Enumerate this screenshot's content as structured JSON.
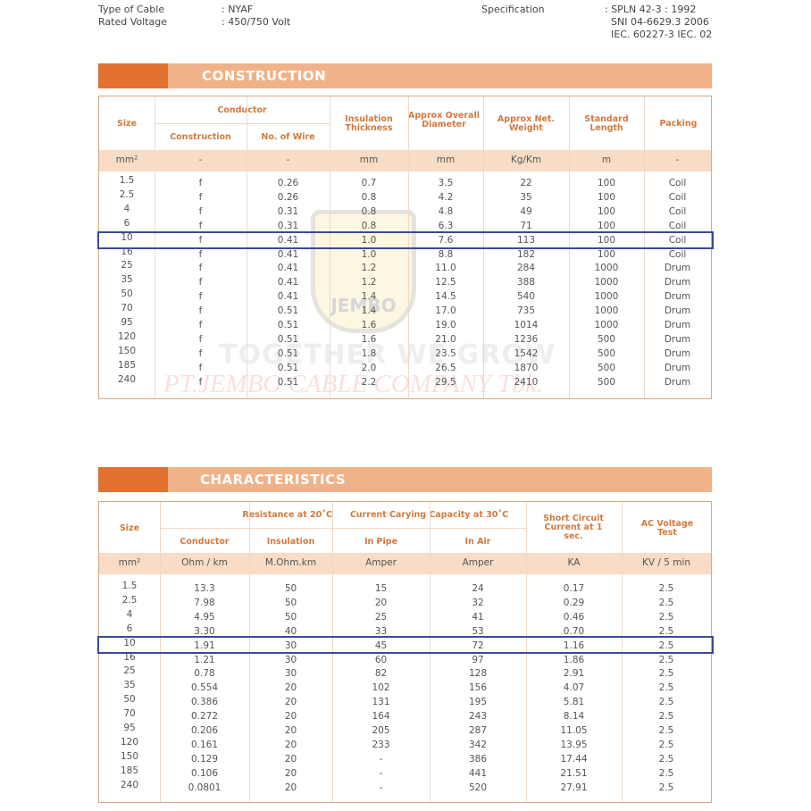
{
  "specs": {
    "type_label": "Type of Cable",
    "type_value": ": NYAF",
    "voltage_label": "Rated Voltage",
    "voltage_value": ": 450/750 Volt",
    "spec_label": "Specification",
    "spec_values": [
      ": SPLN 42-3 : 1992",
      "SNI 04-6629.3 2006",
      "IEC. 60227-3 IEC. 02"
    ]
  },
  "watermark": {
    "logo": "JEMBO",
    "slogan": "TOGETHER WE GROW",
    "company": "PT.JEMBO CABLE COMPANY Tbk."
  },
  "colors": {
    "accent_dark": "#e2702e",
    "accent_light": "#f0b289",
    "header_text": "#d07a3f",
    "highlight": "#3a4a96"
  },
  "construction": {
    "title": "CONSTRUCTION",
    "headers": {
      "size": "Size",
      "conductor": "Conductor",
      "construction": "Construction",
      "no_wire": "No. of Wire",
      "insulation": "Insulation Thickness",
      "diameter": "Approx Overall Diameter",
      "weight": "Approx Net. Weight",
      "length": "Standard Length",
      "packing": "Packing"
    },
    "units": [
      "mm²",
      "-",
      "-",
      "mm",
      "mm",
      "Kg/Km",
      "m",
      "-"
    ],
    "highlighted_size": "10",
    "rows": [
      [
        "1.5",
        "f",
        "0.26",
        "0.7",
        "3.5",
        "22",
        "100",
        "Coil"
      ],
      [
        "2.5",
        "f",
        "0.26",
        "0.8",
        "4.2",
        "35",
        "100",
        "Coil"
      ],
      [
        "4",
        "f",
        "0.31",
        "0.8",
        "4.8",
        "49",
        "100",
        "Coil"
      ],
      [
        "6",
        "f",
        "0.31",
        "0.8",
        "6.3",
        "71",
        "100",
        "Coil"
      ],
      [
        "10",
        "f",
        "0.41",
        "1.0",
        "7.6",
        "113",
        "100",
        "Coil"
      ],
      [
        "16",
        "f",
        "0.41",
        "1.0",
        "8.8",
        "182",
        "100",
        "Coil"
      ],
      [
        "25",
        "f",
        "0.41",
        "1.2",
        "11.0",
        "284",
        "1000",
        "Drum"
      ],
      [
        "35",
        "f",
        "0.41",
        "1.2",
        "12.5",
        "388",
        "1000",
        "Drum"
      ],
      [
        "50",
        "f",
        "0.41",
        "1.4",
        "14.5",
        "540",
        "1000",
        "Drum"
      ],
      [
        "70",
        "f",
        "0.51",
        "1.4",
        "17.0",
        "735",
        "1000",
        "Drum"
      ],
      [
        "95",
        "f",
        "0.51",
        "1.6",
        "19.0",
        "1014",
        "1000",
        "Drum"
      ],
      [
        "120",
        "f",
        "0.51",
        "1.6",
        "21.0",
        "1236",
        "500",
        "Drum"
      ],
      [
        "150",
        "f",
        "0.51",
        "1.8",
        "23.5",
        "1542",
        "500",
        "Drum"
      ],
      [
        "185",
        "f",
        "0.51",
        "2.0",
        "26.5",
        "1870",
        "500",
        "Drum"
      ],
      [
        "240",
        "f",
        "0.51",
        "2.2",
        "29.5",
        "2410",
        "500",
        "Drum"
      ]
    ]
  },
  "characteristics": {
    "title": "CHARACTERISTICS",
    "headers": {
      "size": "Size",
      "resistance": "Resistance at 20˚C",
      "conductor": "Conductor",
      "insulation": "Insulation",
      "capacity": "Current Carying Capacity at 30˚C",
      "in_pipe": "In Pipe",
      "in_air": "In Air",
      "short_circuit": "Short Circuit Current at 1 sec.",
      "ac_voltage": "AC Voltage Test"
    },
    "units": [
      "mm²",
      "Ohm / km",
      "M.Ohm.km",
      "Amper",
      "Amper",
      "KA",
      "KV / 5 min"
    ],
    "highlighted_size": "10",
    "rows": [
      [
        "1.5",
        "13.3",
        "50",
        "15",
        "24",
        "0.17",
        "2.5"
      ],
      [
        "2.5",
        "7.98",
        "50",
        "20",
        "32",
        "0.29",
        "2.5"
      ],
      [
        "4",
        "4.95",
        "50",
        "25",
        "41",
        "0.46",
        "2.5"
      ],
      [
        "6",
        "3.30",
        "40",
        "33",
        "53",
        "0.70",
        "2.5"
      ],
      [
        "10",
        "1.91",
        "30",
        "45",
        "72",
        "1.16",
        "2.5"
      ],
      [
        "16",
        "1.21",
        "30",
        "60",
        "97",
        "1.86",
        "2.5"
      ],
      [
        "25",
        "0.78",
        "30",
        "82",
        "128",
        "2.91",
        "2.5"
      ],
      [
        "35",
        "0.554",
        "20",
        "102",
        "156",
        "4.07",
        "2.5"
      ],
      [
        "50",
        "0.386",
        "20",
        "131",
        "195",
        "5.81",
        "2.5"
      ],
      [
        "70",
        "0.272",
        "20",
        "164",
        "243",
        "8.14",
        "2.5"
      ],
      [
        "95",
        "0.206",
        "20",
        "205",
        "287",
        "11.05",
        "2.5"
      ],
      [
        "120",
        "0.161",
        "20",
        "233",
        "342",
        "13.95",
        "2.5"
      ],
      [
        "150",
        "0.129",
        "20",
        "-",
        "386",
        "17.44",
        "2.5"
      ],
      [
        "185",
        "0.106",
        "20",
        "-",
        "441",
        "21.51",
        "2.5"
      ],
      [
        "240",
        "0.0801",
        "20",
        "-",
        "520",
        "27.91",
        "2.5"
      ]
    ]
  }
}
